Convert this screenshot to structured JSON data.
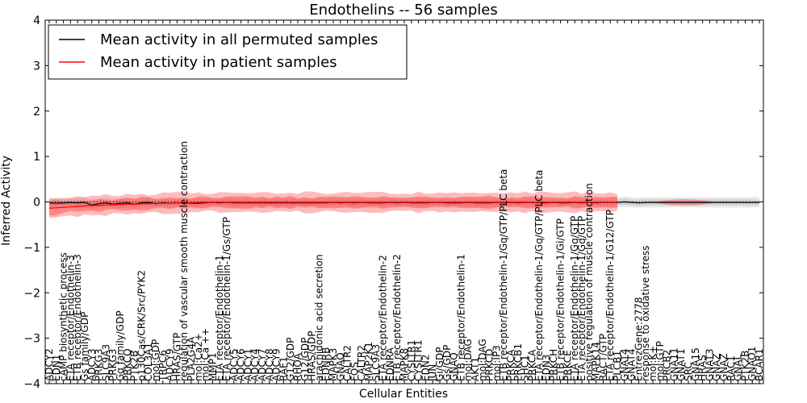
{
  "chart_data": {
    "type": "line",
    "title": "Endothelins -- 56 samples",
    "xlabel": "Cellular Entities",
    "ylabel": "Inferred Activity",
    "ylim": [
      -4,
      4
    ],
    "yticks": [
      -4,
      -3,
      -2,
      -1,
      0,
      1,
      2,
      3,
      4
    ],
    "ytick_labels": [
      "−4",
      "−3",
      "−2",
      "−1",
      "0",
      "1",
      "2",
      "3",
      "4"
    ],
    "grid": false,
    "legend": {
      "placement": "top-left",
      "entries": [
        {
          "label": "Mean activity in all permuted samples",
          "color": "#000000"
        },
        {
          "label": "Mean activity in patient samples",
          "color": "#ff0000"
        }
      ]
    },
    "categories": [
      "ADCY2",
      "EDN1",
      "cAMP biosynthetic process",
      "ETA receptor/Endothelin-3",
      "ETB receptor/Endothelin-3",
      "Gs family/GDP",
      "ADCY3",
      "PRKG3",
      "SLC9A3",
      "PRKG3",
      "Gq family/GDP",
      "PRKCQ",
      "PTK2B",
      "p130Cas/CRK/Src/PYK2",
      "COL3A1",
      "mol:GDP",
      "TRPC6",
      "ADCY9",
      "HRAS/GTP",
      "regulation of vascular smooth muscle contraction",
      "PLA2G4A",
      "mol:Ca2+",
      "mol:Ca ++",
      "MMP1",
      "ETA receptor/Endothelin-1",
      "ETA receptor/Endothelin-1/Gs/GTP",
      "ADCY5",
      "ADCY6",
      "ADCY1",
      "ADCY4",
      "ADCY7",
      "ADCY8",
      "ADCY9",
      "RAF1",
      "G12/GDP",
      "RHOA",
      "G12/GDP",
      "HRAS/GDP",
      "arachidonic acid secretion",
      "EDNRB",
      "MAPK3",
      "GNAQ",
      "CALTR2",
      "FOS",
      "CALTR2",
      "MAP2K1",
      "SLC9A3",
      "ETA receptor/Endothelin-2",
      "EDNRA",
      "ETB receptor/Endothelin-2",
      "MAPK8",
      "CYSLTR1",
      "CYSLTR1",
      "EDN2",
      "JUN",
      "Gi/GDP",
      "Gs/GDP",
      "GNAQ",
      "ETB receptor/Endothelin-1",
      "mol:DAG",
      "AKT1",
      "mol:DAG",
      "PRKCD",
      "mol:IP3",
      "ETB receptor/Endothelin-1/Gq/GTP/PLC beta",
      "PRKCA",
      "PRKCB1",
      "SHC1",
      "PRKCA",
      "ETA receptor/Endothelin-1/Gq/GTP/PLC beta",
      "EDN3",
      "PRKCH",
      "ETB receptor/Endothelin-1/Gi/GTP",
      "PRKCE",
      "ETA receptor/Endothelin-1/Gq/GTP",
      "ETA receptor/Endothelin-1/Gq/GTP",
      "positive regulation of muscle contraction",
      "MAPK14",
      "RACT/GTP",
      "ETA receptor/Endothelin-1/G12/GTP",
      "PLCB1",
      "GNAT4",
      "GNAT4",
      "EntrezGene:2778",
      "response to oxidative stress",
      "mol:K+",
      "mol:GTP",
      "PRCB2",
      "GNA11",
      "GNAT1",
      "SRC",
      "GNA15",
      "HRAS",
      "GNAT3",
      "GNAZ",
      "GNAZ",
      "RAC1",
      "GNAL",
      "PTK2B",
      "GNAO1",
      "BCAR1"
    ],
    "series": [
      {
        "name": "Mean activity in all permuted samples",
        "color": "#000000",
        "values": [
          -0.02,
          -0.03,
          -0.02,
          -0.01,
          -0.02,
          -0.01,
          -0.07,
          -0.04,
          -0.02,
          -0.05,
          -0.03,
          -0.02,
          -0.05,
          -0.02,
          -0.01,
          -0.04,
          -0.02,
          -0.03,
          -0.02,
          -0.02,
          -0.03,
          -0.03,
          -0.02,
          -0.01,
          -0.02,
          -0.01,
          -0.02,
          -0.02,
          -0.02,
          -0.02,
          -0.02,
          -0.02,
          -0.02,
          -0.02,
          -0.02,
          -0.02,
          -0.02,
          -0.02,
          -0.02,
          -0.02,
          -0.01,
          -0.02,
          -0.01,
          -0.02,
          -0.01,
          -0.02,
          -0.02,
          -0.02,
          -0.01,
          -0.02,
          -0.01,
          -0.02,
          -0.02,
          -0.02,
          -0.01,
          -0.01,
          -0.02,
          -0.02,
          -0.02,
          -0.01,
          -0.02,
          -0.02,
          -0.02,
          -0.01,
          -0.02,
          -0.01,
          -0.02,
          -0.01,
          -0.01,
          -0.02,
          -0.02,
          -0.01,
          -0.02,
          -0.02,
          -0.01,
          -0.02,
          -0.01,
          -0.02,
          -0.01,
          -0.01,
          -0.01,
          0.0,
          -0.01,
          -0.02,
          -0.01,
          -0.01,
          -0.01,
          -0.01,
          -0.01,
          -0.01,
          -0.01,
          -0.01,
          -0.01,
          -0.01,
          -0.01,
          -0.01,
          -0.01,
          -0.01,
          -0.01,
          -0.01,
          -0.01
        ],
        "band_inner": [
          0.06,
          0.06,
          0.06,
          0.06,
          0.06,
          0.06,
          0.06,
          0.06,
          0.06,
          0.06,
          0.06,
          0.06,
          0.06,
          0.06,
          0.06,
          0.06,
          0.06,
          0.06,
          0.06,
          0.06,
          0.06,
          0.06,
          0.06,
          0.06,
          0.06,
          0.06,
          0.06,
          0.06,
          0.06,
          0.06,
          0.06,
          0.06,
          0.06,
          0.06,
          0.06,
          0.06,
          0.06,
          0.06,
          0.06,
          0.06,
          0.06,
          0.06,
          0.06,
          0.06,
          0.06,
          0.06,
          0.06,
          0.06,
          0.06,
          0.06,
          0.06,
          0.06,
          0.06,
          0.06,
          0.06,
          0.06,
          0.06,
          0.06,
          0.06,
          0.06,
          0.06,
          0.06,
          0.06,
          0.06,
          0.06,
          0.06,
          0.06,
          0.06,
          0.06,
          0.06,
          0.06,
          0.06,
          0.06,
          0.06,
          0.06,
          0.06,
          0.06,
          0.06,
          0.06,
          0.06,
          0.06,
          0.06,
          0.06,
          0.06,
          0.06,
          0.06,
          0.06,
          0.06,
          0.06,
          0.06,
          0.06,
          0.06,
          0.06,
          0.06,
          0.06,
          0.06,
          0.06,
          0.06,
          0.06,
          0.06,
          0.06
        ],
        "band_outer": [
          0.11,
          0.11,
          0.11,
          0.11,
          0.11,
          0.11,
          0.11,
          0.11,
          0.11,
          0.11,
          0.11,
          0.11,
          0.11,
          0.11,
          0.11,
          0.11,
          0.11,
          0.11,
          0.11,
          0.11,
          0.11,
          0.11,
          0.11,
          0.11,
          0.11,
          0.11,
          0.11,
          0.11,
          0.11,
          0.11,
          0.11,
          0.11,
          0.11,
          0.11,
          0.11,
          0.11,
          0.11,
          0.11,
          0.11,
          0.11,
          0.11,
          0.11,
          0.11,
          0.11,
          0.11,
          0.11,
          0.11,
          0.11,
          0.11,
          0.11,
          0.11,
          0.11,
          0.11,
          0.11,
          0.11,
          0.11,
          0.11,
          0.11,
          0.11,
          0.11,
          0.11,
          0.11,
          0.11,
          0.11,
          0.11,
          0.11,
          0.11,
          0.11,
          0.11,
          0.11,
          0.11,
          0.11,
          0.11,
          0.11,
          0.11,
          0.11,
          0.11,
          0.11,
          0.11,
          0.11,
          0.11,
          0.11,
          0.11,
          0.11,
          0.11,
          0.11,
          0.11,
          0.11,
          0.11,
          0.11,
          0.11,
          0.11,
          0.11,
          0.11,
          0.11,
          0.11,
          0.11,
          0.11,
          0.11,
          0.11,
          0.11
        ],
        "band_color": "#999999"
      },
      {
        "name": "Mean activity in patient samples",
        "color": "#ff0000",
        "values": [
          -0.14,
          -0.13,
          -0.12,
          -0.11,
          -0.1,
          -0.09,
          -0.08,
          -0.08,
          -0.07,
          -0.06,
          -0.06,
          -0.05,
          -0.05,
          -0.04,
          -0.04,
          -0.03,
          -0.03,
          -0.03,
          -0.02,
          -0.02,
          -0.02,
          -0.01,
          -0.01,
          -0.01,
          -0.01,
          -0.01,
          -0.01,
          -0.01,
          -0.01,
          -0.01,
          -0.01,
          -0.01,
          -0.01,
          -0.01,
          -0.01,
          -0.01,
          -0.01,
          -0.01,
          -0.01,
          -0.01,
          -0.01,
          -0.01,
          -0.01,
          -0.01,
          -0.01,
          -0.01,
          -0.01,
          -0.01,
          -0.01,
          -0.01,
          -0.01,
          -0.01,
          -0.01,
          -0.01,
          -0.01,
          -0.01,
          -0.01,
          -0.01,
          -0.01,
          -0.01,
          -0.01,
          -0.01,
          -0.01,
          -0.01,
          -0.01,
          -0.01,
          -0.01,
          -0.01,
          -0.01,
          -0.01,
          -0.01,
          -0.01,
          -0.01,
          -0.01,
          -0.01,
          -0.01,
          -0.01,
          -0.01,
          -0.01,
          -0.01,
          -0.01,
          null,
          null,
          null,
          null,
          null,
          null,
          null,
          null,
          null,
          null,
          null,
          null,
          null,
          null,
          null,
          null,
          null,
          null,
          null,
          null
        ],
        "band_inner": [
          0.16,
          0.17,
          0.12,
          0.09,
          0.12,
          0.11,
          0.11,
          0.14,
          0.11,
          0.09,
          0.13,
          0.14,
          0.12,
          0.15,
          0.14,
          0.09,
          0.1,
          0.13,
          0.09,
          0.11,
          0.09,
          0.13,
          0.13,
          0.09,
          0.09,
          0.13,
          0.13,
          0.14,
          0.14,
          0.1,
          0.13,
          0.08,
          0.13,
          0.1,
          0.15,
          0.08,
          0.11,
          0.08,
          0.13,
          0.12,
          0.13,
          0.12,
          0.11,
          0.14,
          0.12,
          0.1,
          0.1,
          0.14,
          0.11,
          0.1,
          0.09,
          0.11,
          0.13,
          0.13,
          0.1,
          0.09,
          0.11,
          0.09,
          0.12,
          0.13,
          0.12,
          0.13,
          0.15,
          0.11,
          0.08,
          0.1,
          0.09,
          0.13,
          0.13,
          0.12,
          0.11,
          0.1,
          0.1,
          0.08,
          0.14,
          0.12,
          0.08,
          0.12,
          0.1,
          0.12,
          0.12,
          null,
          null,
          null,
          null,
          null,
          null,
          null,
          null,
          null,
          null,
          null,
          null,
          null,
          null,
          null,
          null,
          null,
          null,
          null,
          null
        ],
        "band_outer": [
          0.21,
          0.21,
          0.19,
          0.19,
          0.23,
          0.19,
          0.22,
          0.21,
          0.24,
          0.19,
          0.19,
          0.23,
          0.2,
          0.22,
          0.18,
          0.19,
          0.24,
          0.23,
          0.24,
          0.24,
          0.2,
          0.22,
          0.18,
          0.18,
          0.23,
          0.22,
          0.21,
          0.21,
          0.2,
          0.21,
          0.23,
          0.22,
          0.19,
          0.2,
          0.21,
          0.18,
          0.24,
          0.24,
          0.21,
          0.18,
          0.19,
          0.22,
          0.23,
          0.21,
          0.21,
          0.23,
          0.23,
          0.23,
          0.19,
          0.18,
          0.19,
          0.18,
          0.24,
          0.19,
          0.19,
          0.22,
          0.2,
          0.22,
          0.2,
          0.21,
          0.21,
          0.19,
          0.21,
          0.21,
          0.2,
          0.22,
          0.2,
          0.24,
          0.19,
          0.24,
          0.23,
          0.21,
          0.2,
          0.22,
          0.24,
          0.19,
          0.24,
          0.2,
          0.19,
          0.22,
          0.18,
          null,
          null,
          null,
          null,
          null,
          null,
          null,
          null,
          null,
          null,
          null,
          null,
          null,
          null,
          null,
          null,
          null,
          null,
          null,
          null
        ],
        "band_color": "#ff3b3b"
      }
    ],
    "extra_patient_blobs": [
      {
        "from_index": 85,
        "to_index": 94,
        "value": -0.01,
        "half_height": 0.07
      }
    ]
  }
}
